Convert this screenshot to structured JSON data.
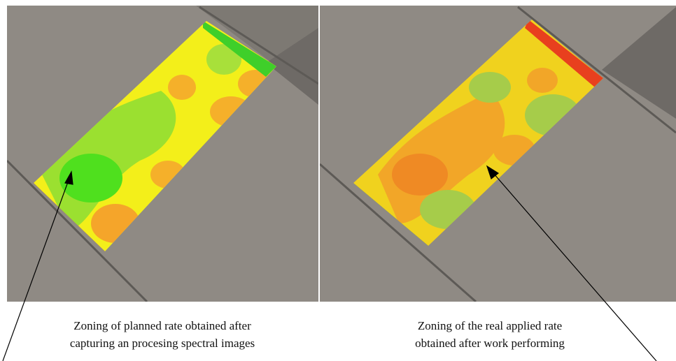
{
  "panels": [
    {
      "caption_lines": [
        "Zoning of planned rate obtained after",
        "capturing an procesing spectral images"
      ]
    },
    {
      "caption_lines": [
        "Zoning of the real applied rate",
        "obtained after work performing"
      ]
    }
  ]
}
